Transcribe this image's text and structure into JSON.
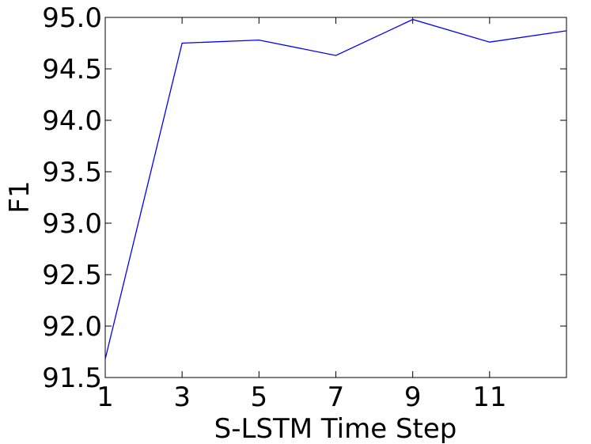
{
  "chart_data": {
    "type": "line",
    "x_label": "S-LSTM Time Step",
    "y_label": "F1",
    "x": [
      1,
      3,
      5,
      7,
      9,
      11,
      13
    ],
    "series": [
      {
        "color": "#0000ff",
        "values": [
          91.68,
          94.75,
          94.78,
          94.63,
          94.98,
          94.76,
          94.87
        ]
      }
    ],
    "xlim": [
      1,
      13
    ],
    "xticks": [
      1,
      3,
      5,
      7,
      9,
      11
    ],
    "ylim": [
      91.5,
      95.0
    ],
    "yticks": [
      {
        "value": 91.5,
        "label": "91.5"
      },
      {
        "value": 92.0,
        "label": "92.0"
      },
      {
        "value": 92.5,
        "label": "92.5"
      },
      {
        "value": 93.0,
        "label": "93.0"
      },
      {
        "value": 93.5,
        "label": "93.5"
      },
      {
        "value": 94.0,
        "label": "94.0"
      },
      {
        "value": 94.5,
        "label": "94.5"
      },
      {
        "value": 95.0,
        "label": "95.0"
      }
    ]
  }
}
